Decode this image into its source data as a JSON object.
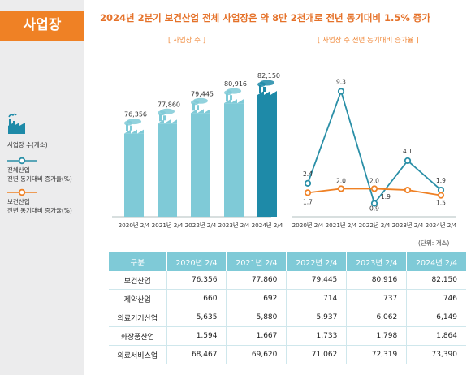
{
  "section_label": "사업장",
  "headline": "2024년 2분기 보건산업 전체 사업장은 약 8만 2천개로 전년 동기대비 1.5% 증가",
  "legend": {
    "bar_label": "사업장 수(개소)",
    "line1_label": [
      "전체산업",
      "전년 동기대비 증가율(%)"
    ],
    "line2_label": [
      "보건산업",
      "전년 동기대비 증가율(%)"
    ]
  },
  "colors": {
    "accent": "#ef8125",
    "teal": "#7fcad7",
    "dark_teal": "#1e8aa8",
    "line_blue": "#2a8fa7",
    "line_orange": "#ef8125"
  },
  "unit_note": "(단위: 개소)",
  "chart_data": [
    {
      "type": "bar",
      "title": "[ 사업장 수 ]",
      "categories": [
        "2020년 2/4",
        "2021년 2/4",
        "2022년 2/4",
        "2023년 2/4",
        "2024년 2/4"
      ],
      "values": [
        76356,
        77860,
        79445,
        80916,
        82150
      ],
      "value_labels": [
        "76,356",
        "77,860",
        "79,445",
        "80,916",
        "82,150"
      ],
      "highlight_index": 4
    },
    {
      "type": "line",
      "title": "[ 사업장 수 전년 동기대비 증가율 ]",
      "categories": [
        "2020년 2/4",
        "2021년 2/4",
        "2022년 2/4",
        "2023년 2/4",
        "2024년 2/4"
      ],
      "series": [
        {
          "name": "전체산업 전년 동기대비 증가율(%)",
          "values": [
            2.4,
            9.3,
            0.9,
            4.1,
            1.9
          ]
        },
        {
          "name": "보건산업 전년 동기대비 증가율(%)",
          "values": [
            1.7,
            2.0,
            2.0,
            1.9,
            1.5
          ]
        }
      ],
      "ylim": [
        0,
        10
      ]
    }
  ],
  "table": {
    "headers": [
      "구분",
      "2020년 2/4",
      "2021년 2/4",
      "2022년 2/4",
      "2023년 2/4",
      "2024년 2/4"
    ],
    "rows": [
      [
        "보건산업",
        "76,356",
        "77,860",
        "79,445",
        "80,916",
        "82,150"
      ],
      [
        "제약산업",
        "660",
        "692",
        "714",
        "737",
        "746"
      ],
      [
        "의료기기산업",
        "5,635",
        "5,880",
        "5,937",
        "6,062",
        "6,149"
      ],
      [
        "화장품산업",
        "1,594",
        "1,667",
        "1,733",
        "1,798",
        "1,864"
      ],
      [
        "의료서비스업",
        "68,467",
        "69,620",
        "71,062",
        "72,319",
        "73,390"
      ]
    ]
  }
}
